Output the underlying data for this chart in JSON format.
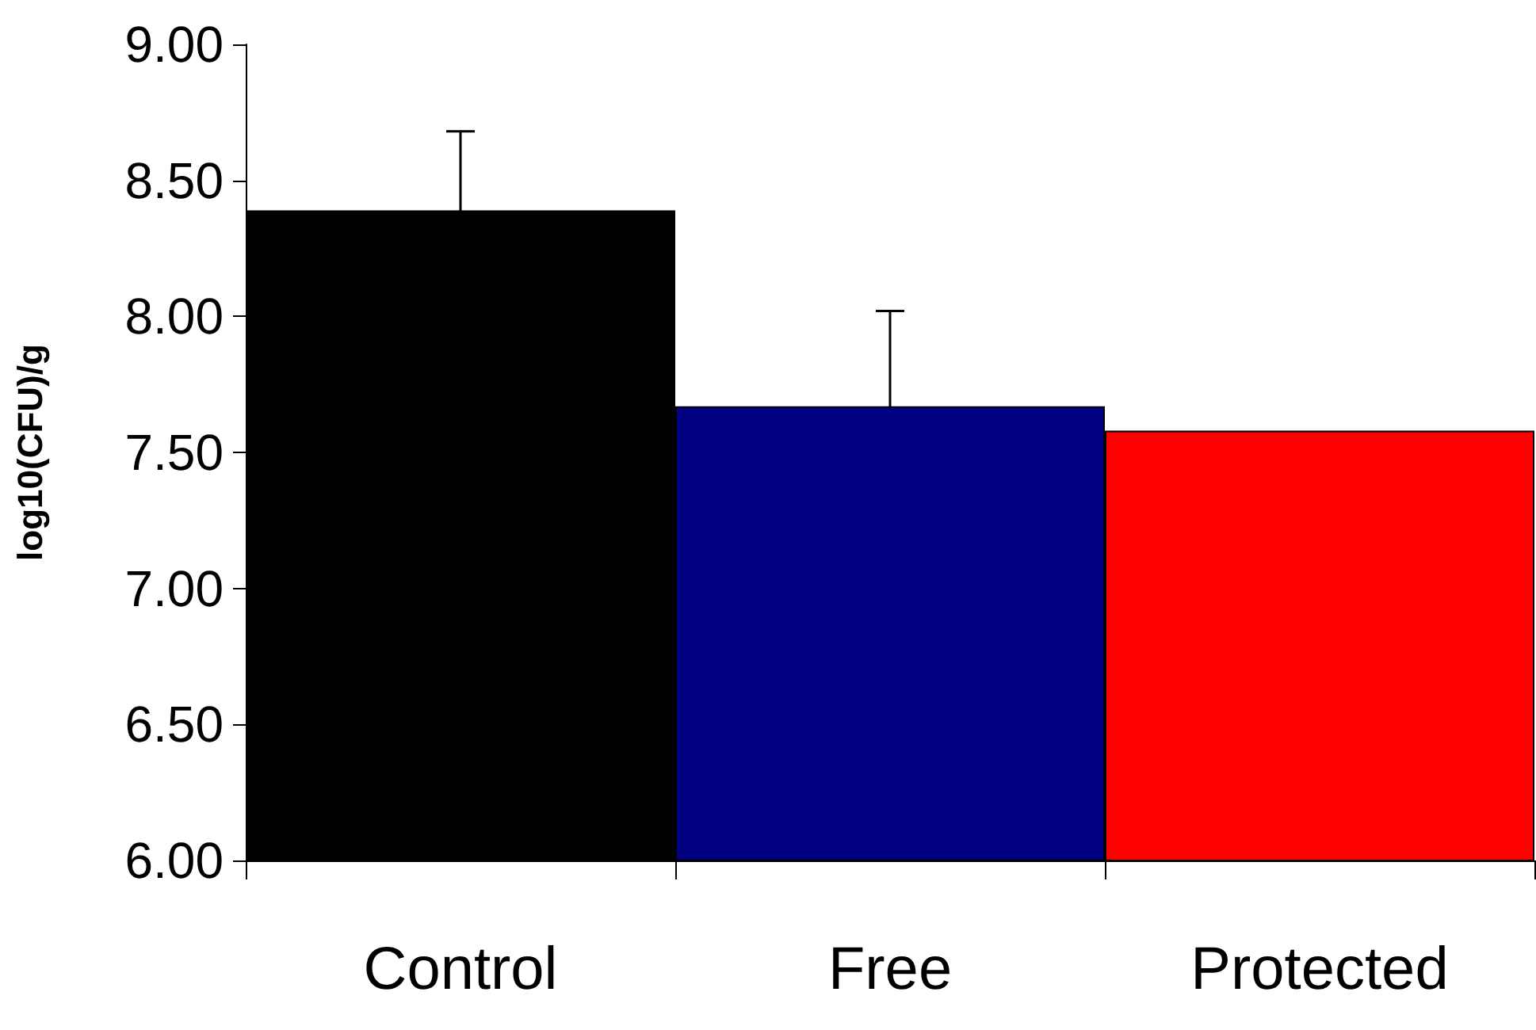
{
  "chart_data": {
    "type": "bar",
    "ylabel": "log10(CFU)/g",
    "categories": [
      "Control",
      "Free",
      "Protected"
    ],
    "values": [
      8.39,
      7.67,
      7.58
    ],
    "colors": [
      "#000000",
      "#000080",
      "#ff0000"
    ],
    "errors": [
      0.29,
      0.35,
      null
    ],
    "ylim": [
      6,
      9
    ],
    "yticks": [
      {
        "value": 6,
        "label": "6.00"
      },
      {
        "value": 6.5,
        "label": "6.50"
      },
      {
        "value": 7,
        "label": "7.00"
      },
      {
        "value": 7.5,
        "label": "7.50"
      },
      {
        "value": 8,
        "label": "8.00"
      },
      {
        "value": 8.5,
        "label": "8.50"
      },
      {
        "value": 9,
        "label": "9.00"
      }
    ],
    "grid": false
  }
}
